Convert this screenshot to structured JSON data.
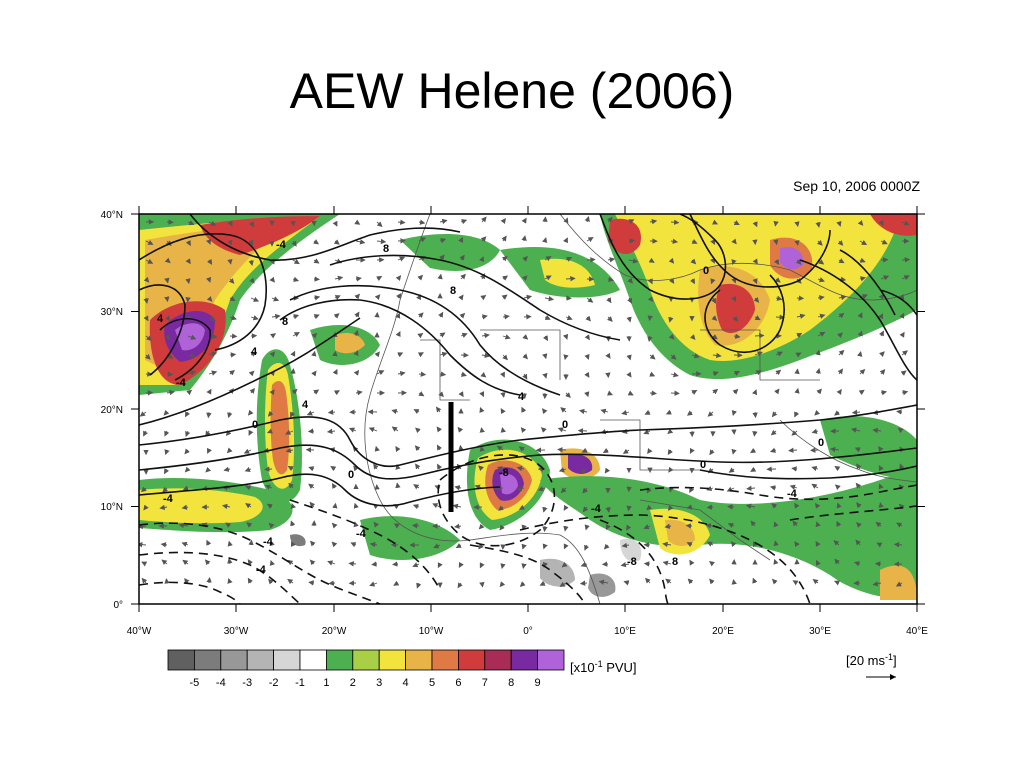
{
  "slide": {
    "title": "AEW Helene (2006)"
  },
  "map": {
    "timestamp": "Sep 10, 2006 0000Z",
    "lat_labels": [
      "40°N",
      "30°N",
      "20°N",
      "10°N",
      "0°"
    ],
    "lon_labels": [
      "40°W",
      "30°W",
      "20°W",
      "10°W",
      "0°",
      "10°E",
      "20°E",
      "30°E",
      "40°E"
    ],
    "contour_labels": [
      "-4",
      "4",
      "8",
      "8",
      "8",
      "-4",
      "4",
      "0",
      "0",
      "4",
      "0",
      "4",
      "0",
      "0",
      "0",
      "-4",
      "-4",
      "-4",
      "-8",
      "-4",
      "-4",
      "-8",
      "8",
      "-4"
    ],
    "reference_vector_label": "[20 ms",
    "reference_vector_sup": "-1",
    "reference_vector_close": "]"
  },
  "colorbar": {
    "values": [
      "-5",
      "-4",
      "-3",
      "-2",
      "-1",
      "1",
      "2",
      "3",
      "4",
      "5",
      "6",
      "7",
      "8",
      "9"
    ],
    "colors": [
      "#606060",
      "#7c7c7c",
      "#989898",
      "#b4b4b4",
      "#d6d6d6",
      "#ffffff",
      "#4caf50",
      "#a8cf45",
      "#f2e43c",
      "#e8b447",
      "#e07a45",
      "#d03c3c",
      "#a82c55",
      "#7a2aa0",
      "#b062d8"
    ],
    "units_prefix": "[x10",
    "units_sup": "-1",
    "units_suffix": " PVU]"
  }
}
